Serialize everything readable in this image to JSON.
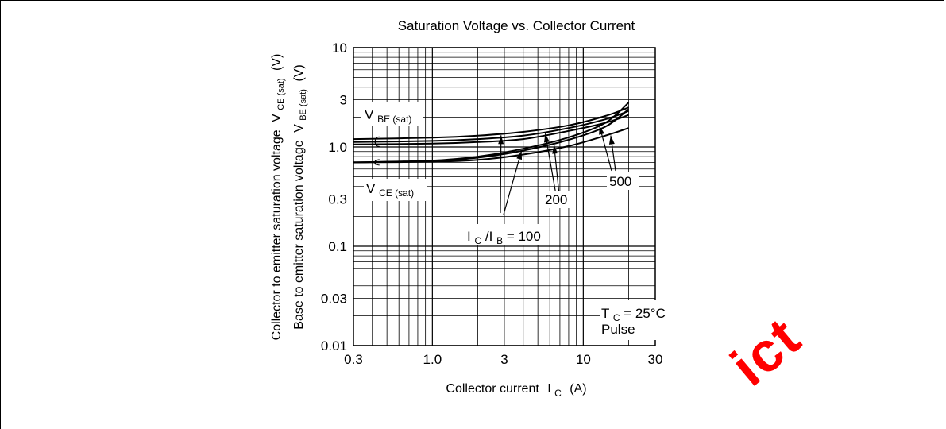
{
  "chart_data": {
    "type": "line",
    "title": "Saturation Voltage vs. Collector Current",
    "xlabel": "Collector current",
    "xlabel_symbol": "I",
    "xlabel_symbol_sub": "C",
    "xlabel_unit": "(A)",
    "ylabel_line1": "Collector to emitter saturation voltage",
    "ylabel_line1_symbol": "V",
    "ylabel_line1_sub": "CE (sat)",
    "ylabel_line1_unit": "(V)",
    "ylabel_line2": "Base to emitter saturation voltage",
    "ylabel_line2_symbol": "V",
    "ylabel_line2_sub": "BE (sat)",
    "ylabel_line2_unit": "(V)",
    "x_scale": "log",
    "y_scale": "log",
    "xlim": [
      0.3,
      30
    ],
    "ylim": [
      0.01,
      10
    ],
    "grid": true,
    "x_ticks": [
      {
        "value": 0.3,
        "label": "0.3"
      },
      {
        "value": 1,
        "label": "1.0"
      },
      {
        "value": 3,
        "label": "3"
      },
      {
        "value": 10,
        "label": "10"
      },
      {
        "value": 30,
        "label": "30"
      }
    ],
    "y_ticks": [
      {
        "value": 0.01,
        "label": "0.01"
      },
      {
        "value": 0.03,
        "label": "0.03"
      },
      {
        "value": 0.1,
        "label": "0.1"
      },
      {
        "value": 0.3,
        "label": "0.3"
      },
      {
        "value": 1,
        "label": "1.0"
      },
      {
        "value": 3,
        "label": "3"
      },
      {
        "value": 10,
        "label": "10"
      }
    ],
    "series": [
      {
        "group": "vbe",
        "ratio": "100",
        "x": [
          0.3,
          1,
          2,
          4,
          8,
          14,
          20
        ],
        "y": [
          1.2,
          1.24,
          1.3,
          1.42,
          1.65,
          2.05,
          2.5
        ]
      },
      {
        "group": "vbe",
        "ratio": "200",
        "x": [
          0.3,
          1,
          2,
          4,
          8,
          14,
          20
        ],
        "y": [
          1.12,
          1.15,
          1.2,
          1.3,
          1.55,
          1.9,
          2.3
        ]
      },
      {
        "group": "vbe",
        "ratio": "500",
        "x": [
          0.3,
          1,
          2,
          4,
          8,
          14,
          20
        ],
        "y": [
          1.06,
          1.08,
          1.12,
          1.2,
          1.45,
          1.75,
          2.1
        ]
      },
      {
        "group": "vce",
        "ratio": "100",
        "x": [
          0.3,
          1,
          2,
          4,
          8,
          14,
          20
        ],
        "y": [
          0.7,
          0.73,
          0.8,
          0.96,
          1.25,
          1.75,
          2.8
        ]
      },
      {
        "group": "vce",
        "ratio": "200",
        "x": [
          0.3,
          1,
          2,
          4,
          8,
          14,
          20
        ],
        "y": [
          0.7,
          0.72,
          0.78,
          0.92,
          1.18,
          1.6,
          2.4
        ]
      },
      {
        "group": "vce",
        "ratio": "500",
        "x": [
          0.3,
          1,
          2,
          4,
          8,
          14,
          20
        ],
        "y": [
          0.7,
          0.71,
          0.74,
          0.84,
          1.02,
          1.3,
          1.55
        ]
      }
    ],
    "annotations": {
      "vbe_label": {
        "main": "V",
        "sub": "BE (sat)"
      },
      "vce_label": {
        "main": "V",
        "sub": "CE (sat)"
      },
      "ratio_label": {
        "prefix_main": "I",
        "prefix_sub": "C",
        "slash": "/I",
        "slash_sub": "B",
        "suffix": " = 100"
      },
      "label_200": "200",
      "label_500": "500",
      "condition_main": "T",
      "condition_sub": "C",
      "condition_value": " = 25°C",
      "condition_pulse": "Pulse"
    }
  },
  "watermark": "ict",
  "colors": {
    "ink": "#000000",
    "watermark": "#ff0000",
    "background": "#ffffff"
  }
}
